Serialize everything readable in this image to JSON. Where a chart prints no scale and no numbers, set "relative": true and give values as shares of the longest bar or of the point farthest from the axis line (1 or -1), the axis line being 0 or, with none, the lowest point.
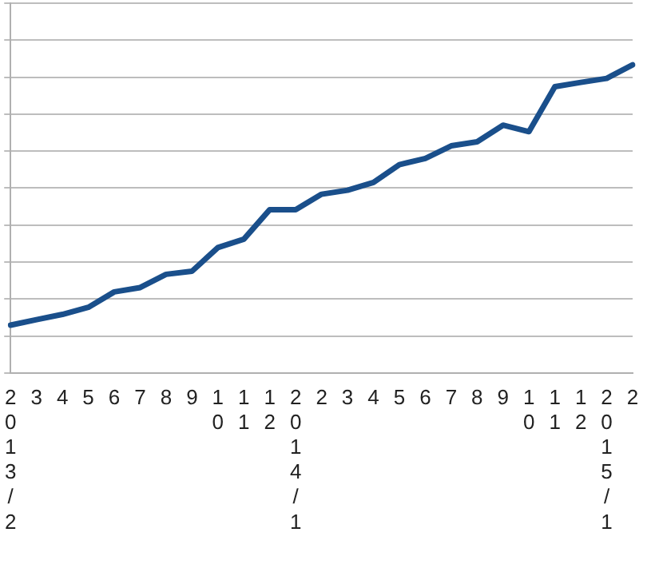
{
  "chart_data": {
    "type": "line",
    "relative": true,
    "grid": "y",
    "marker": "none",
    "line_style": "solid",
    "categories": [
      "2013/2",
      "3",
      "4",
      "5",
      "6",
      "7",
      "8",
      "9",
      "10",
      "11",
      "12",
      "2014/1",
      "2",
      "3",
      "4",
      "5",
      "6",
      "7",
      "8",
      "9",
      "10",
      "11",
      "12",
      "2015/1",
      "2"
    ],
    "series": [
      {
        "color": "#1a4f8b",
        "values": [
          0.155,
          0.173,
          0.19,
          0.213,
          0.263,
          0.277,
          0.32,
          0.33,
          0.407,
          0.434,
          0.53,
          0.53,
          0.58,
          0.593,
          0.618,
          0.676,
          0.696,
          0.737,
          0.75,
          0.804,
          0.783,
          0.929,
          0.943,
          0.956,
          1
        ]
      }
    ]
  }
}
